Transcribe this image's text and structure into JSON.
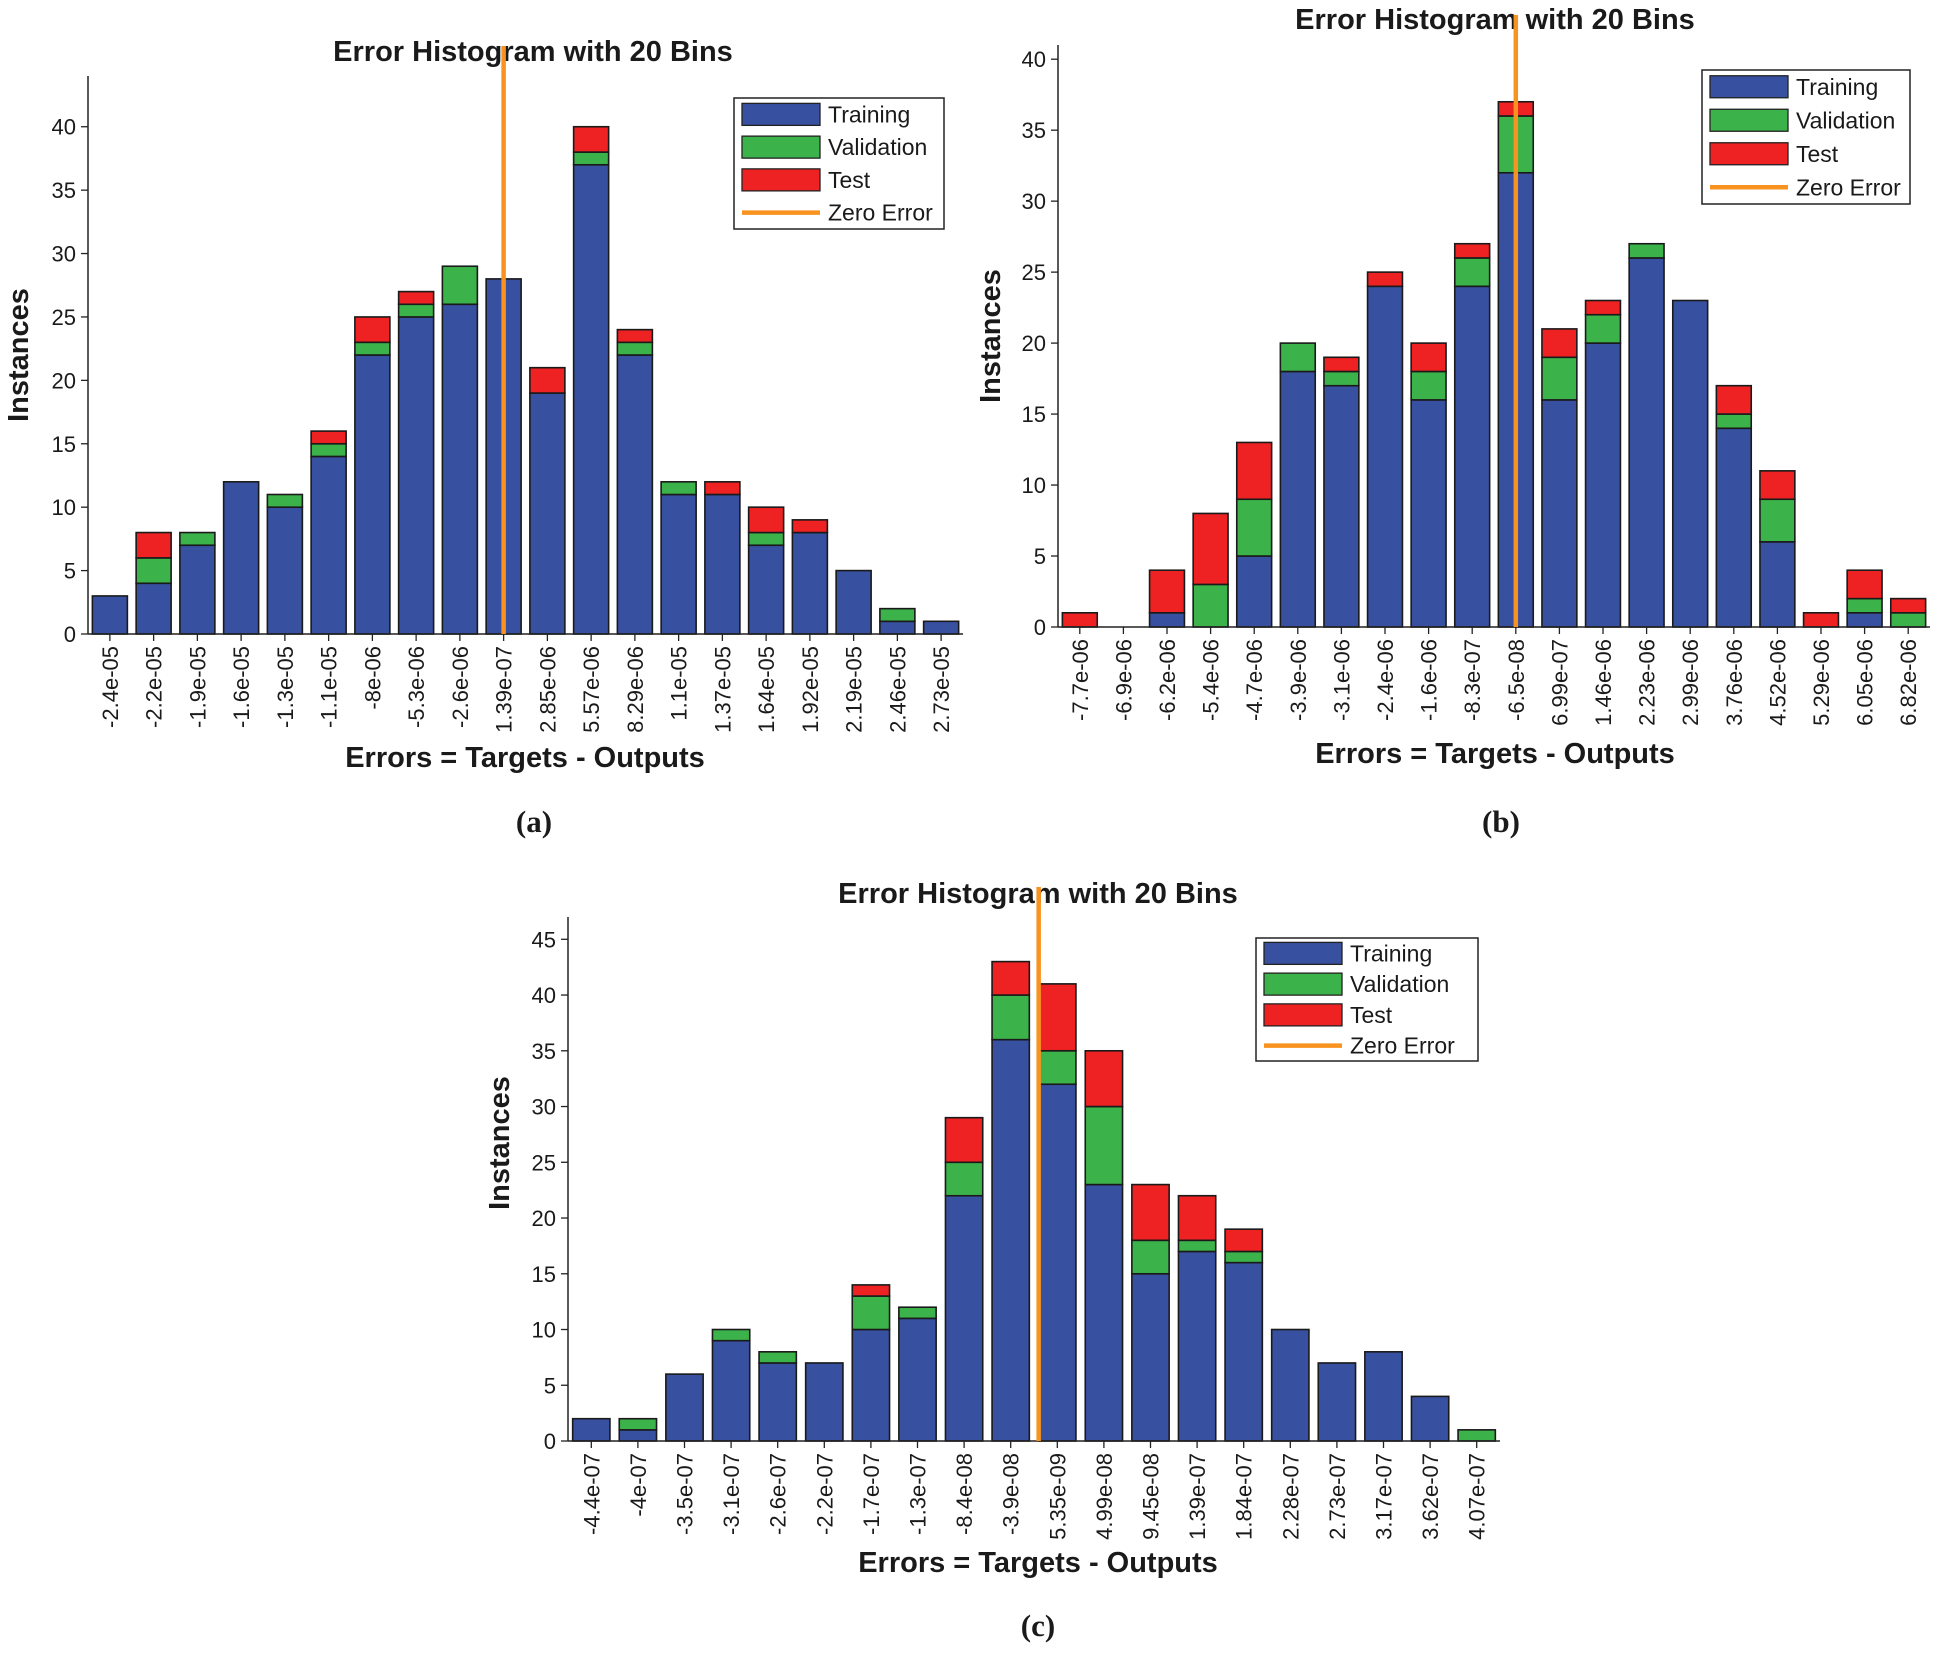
{
  "colors": {
    "training": "#3850a0",
    "validation": "#3cb34a",
    "test": "#ee2222",
    "zero_error": "#f7931e",
    "axis": "#222222"
  },
  "chart_data": [
    {
      "type": "bar",
      "stacked": true,
      "panel": "(a)",
      "title": "Error Histogram with 20 Bins",
      "xlabel": "Errors = Targets - Outputs",
      "ylabel": "Instances",
      "ylim": [
        0,
        44
      ],
      "yticks": [
        0,
        5,
        10,
        15,
        20,
        25,
        30,
        35,
        40
      ],
      "categories": [
        "-2.4e-05",
        "-2.2e-05",
        "-1.9e-05",
        "-1.6e-05",
        "-1.3e-05",
        "-1.1e-05",
        "-8e-06",
        "-5.3e-06",
        "-2.6e-06",
        "1.39e-07",
        "2.85e-06",
        "5.57e-06",
        "8.29e-06",
        "1.1e-05",
        "1.37e-05",
        "1.64e-05",
        "1.92e-05",
        "2.19e-05",
        "2.46e-05",
        "2.73e-05"
      ],
      "series": [
        {
          "name": "Training",
          "values": [
            3,
            4,
            7,
            12,
            10,
            14,
            22,
            25,
            26,
            28,
            19,
            37,
            22,
            11,
            11,
            7,
            8,
            5,
            1,
            1
          ]
        },
        {
          "name": "Validation",
          "values": [
            0,
            2,
            1,
            0,
            1,
            1,
            1,
            1,
            3,
            0,
            0,
            1,
            1,
            1,
            0,
            1,
            0,
            0,
            1,
            0
          ]
        },
        {
          "name": "Test",
          "values": [
            0,
            2,
            0,
            0,
            0,
            1,
            2,
            1,
            0,
            0,
            2,
            2,
            1,
            0,
            1,
            2,
            1,
            0,
            0,
            0
          ]
        }
      ],
      "zero_error_bin": 9,
      "legend": [
        "Training",
        "Validation",
        "Test",
        "Zero Error"
      ],
      "legend_position": "top-right"
    },
    {
      "type": "bar",
      "stacked": true,
      "panel": "(b)",
      "title": "Error Histogram with 20 Bins",
      "xlabel": "Errors = Targets - Outputs",
      "ylabel": "Instances",
      "ylim": [
        0,
        41
      ],
      "yticks": [
        0,
        5,
        10,
        15,
        20,
        25,
        30,
        35,
        40
      ],
      "categories": [
        "-7.7e-06",
        "-6.9e-06",
        "-6.2e-06",
        "-5.4e-06",
        "-4.7e-06",
        "-3.9e-06",
        "-3.1e-06",
        "-2.4e-06",
        "-1.6e-06",
        "-8.3e-07",
        "-6.5e-08",
        "6.99e-07",
        "1.46e-06",
        "2.23e-06",
        "2.99e-06",
        "3.76e-06",
        "4.52e-06",
        "5.29e-06",
        "6.05e-06",
        "6.82e-06"
      ],
      "series": [
        {
          "name": "Training",
          "values": [
            0,
            0,
            1,
            0,
            5,
            18,
            17,
            24,
            16,
            24,
            32,
            16,
            20,
            26,
            23,
            14,
            6,
            0,
            1,
            0
          ]
        },
        {
          "name": "Validation",
          "values": [
            0,
            0,
            0,
            3,
            4,
            2,
            1,
            0,
            2,
            2,
            4,
            3,
            2,
            1,
            0,
            1,
            3,
            0,
            1,
            1
          ]
        },
        {
          "name": "Test",
          "values": [
            1,
            0,
            3,
            5,
            4,
            0,
            1,
            1,
            2,
            1,
            1,
            2,
            1,
            0,
            0,
            2,
            2,
            1,
            2,
            1
          ]
        }
      ],
      "zero_error_bin": 10,
      "legend": [
        "Training",
        "Validation",
        "Test",
        "Zero Error"
      ],
      "legend_position": "top-right"
    },
    {
      "type": "bar",
      "stacked": true,
      "panel": "(c)",
      "title": "Error Histogram with 20 Bins",
      "xlabel": "Errors = Targets - Outputs",
      "ylabel": "Instances",
      "ylim": [
        0,
        47
      ],
      "yticks": [
        0,
        5,
        10,
        15,
        20,
        25,
        30,
        35,
        40,
        45
      ],
      "categories": [
        "-4.4e-07",
        "-4e-07",
        "-3.5e-07",
        "-3.1e-07",
        "-2.6e-07",
        "-2.2e-07",
        "-1.7e-07",
        "-1.3e-07",
        "-8.4e-08",
        "-3.9e-08",
        "5.35e-09",
        "4.99e-08",
        "9.45e-08",
        "1.39e-07",
        "1.84e-07",
        "2.28e-07",
        "2.73e-07",
        "3.17e-07",
        "3.62e-07",
        "4.07e-07"
      ],
      "series": [
        {
          "name": "Training",
          "values": [
            2,
            1,
            6,
            9,
            7,
            7,
            10,
            11,
            22,
            36,
            32,
            23,
            15,
            17,
            16,
            10,
            7,
            8,
            4,
            0
          ]
        },
        {
          "name": "Validation",
          "values": [
            0,
            1,
            0,
            1,
            1,
            0,
            3,
            1,
            3,
            4,
            3,
            7,
            3,
            1,
            1,
            0,
            0,
            0,
            0,
            1
          ]
        },
        {
          "name": "Test",
          "values": [
            0,
            0,
            0,
            0,
            0,
            0,
            1,
            0,
            4,
            3,
            6,
            5,
            5,
            4,
            2,
            0,
            0,
            0,
            0,
            0
          ]
        }
      ],
      "zero_error_bin": 9.6,
      "legend": [
        "Training",
        "Validation",
        "Test",
        "Zero Error"
      ],
      "legend_position": "top-right"
    }
  ]
}
